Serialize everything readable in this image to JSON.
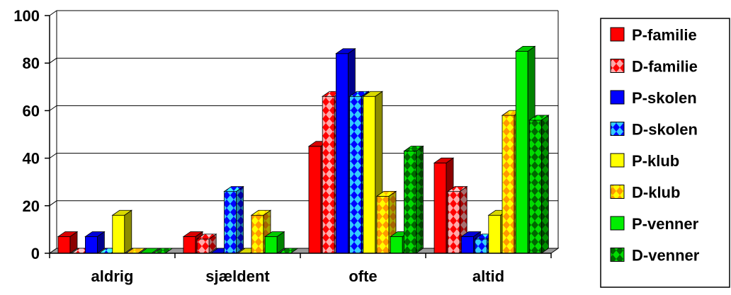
{
  "chart_data": {
    "type": "bar",
    "title": "",
    "xlabel": "",
    "ylabel": "",
    "categories": [
      "aldrig",
      "sjældent",
      "ofte",
      "altid"
    ],
    "ylim": [
      0,
      100
    ],
    "yticks": [
      0,
      20,
      40,
      60,
      80,
      100
    ],
    "grid": true,
    "legend_position": "right",
    "series": [
      {
        "name": "P-familie",
        "values": [
          7,
          7,
          45,
          38
        ],
        "color": "#ff0000",
        "pattern": "solid"
      },
      {
        "name": "D-familie",
        "values": [
          0,
          6,
          66,
          26
        ],
        "color": "#ff0000",
        "pattern": "diamond-pink"
      },
      {
        "name": "P-skolen",
        "values": [
          7,
          0,
          84,
          7
        ],
        "color": "#0000ff",
        "pattern": "solid"
      },
      {
        "name": "D-skolen",
        "values": [
          0,
          26,
          66,
          6
        ],
        "color": "#0000ff",
        "pattern": "diamond-cyan"
      },
      {
        "name": "P-klub",
        "values": [
          16,
          0,
          66,
          16
        ],
        "color": "#ffff00",
        "pattern": "solid"
      },
      {
        "name": "D-klub",
        "values": [
          0,
          16,
          24,
          58
        ],
        "color": "#ffff00",
        "pattern": "diamond-orange"
      },
      {
        "name": "P-venner",
        "values": [
          0,
          7,
          7,
          85
        ],
        "color": "#00ee00",
        "pattern": "solid"
      },
      {
        "name": "D-venner",
        "values": [
          0,
          0,
          43,
          56
        ],
        "color": "#00ee00",
        "pattern": "diamond-darkgreen"
      }
    ]
  }
}
